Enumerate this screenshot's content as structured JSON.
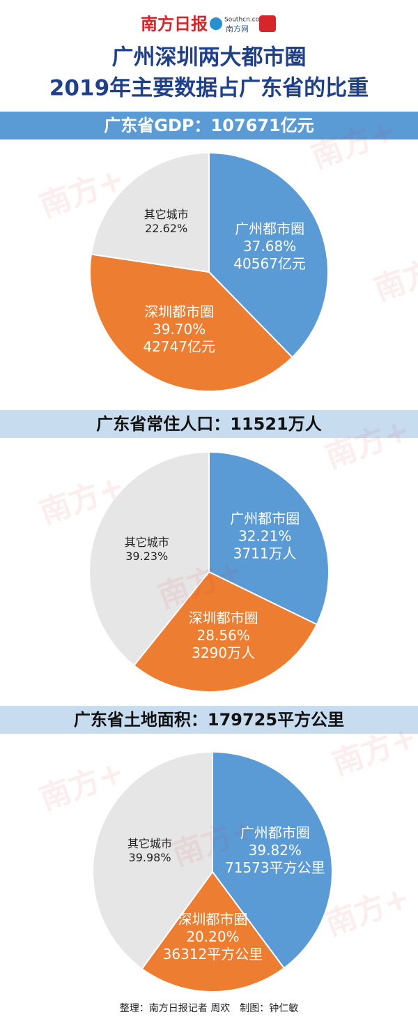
{
  "header": {
    "logo": "南方日报",
    "site": "Southcn.com",
    "site_name": "南方网",
    "title": [
      "广州深圳两大都市圈",
      "2019年主要数据占广东省的比重"
    ]
  },
  "watermark": "南方+",
  "chart_data": [
    {
      "type": "pie",
      "title": "广东省GDP：107671亿元",
      "categories": [
        "广州都市圈",
        "深圳都市圈",
        "其它城市"
      ],
      "values": [
        37.68,
        39.7,
        22.62
      ],
      "value_labels": [
        "37.68%",
        "39.70%",
        "22.62%"
      ],
      "amount_labels": [
        "40567亿元",
        "42747亿元",
        null
      ],
      "colors": [
        "#5b9bd5",
        "#ed7d31",
        "#e7e6e6"
      ]
    },
    {
      "type": "pie",
      "title": "广东省常住人口：11521万人",
      "categories": [
        "广州都市圈",
        "深圳都市圈",
        "其它城市"
      ],
      "values": [
        32.21,
        28.56,
        39.23
      ],
      "value_labels": [
        "32.21%",
        "28.56%",
        "39.23%"
      ],
      "amount_labels": [
        "3711万人",
        "3290万人",
        null
      ],
      "colors": [
        "#5b9bd5",
        "#ed7d31",
        "#e7e6e6"
      ]
    },
    {
      "type": "pie",
      "title": "广东省土地面积：179725平方公里",
      "categories": [
        "广州都市圈",
        "深圳都市圈",
        "其它城市"
      ],
      "values": [
        39.82,
        20.2,
        39.98
      ],
      "value_labels": [
        "39.82%",
        "20.20%",
        "39.98%"
      ],
      "amount_labels": [
        "71573平方公里",
        "36312平方公里",
        null
      ],
      "colors": [
        "#5b9bd5",
        "#ed7d31",
        "#e7e6e6"
      ]
    }
  ],
  "footer": "整理：南方日报记者 周欢　制图：钟仁敏"
}
